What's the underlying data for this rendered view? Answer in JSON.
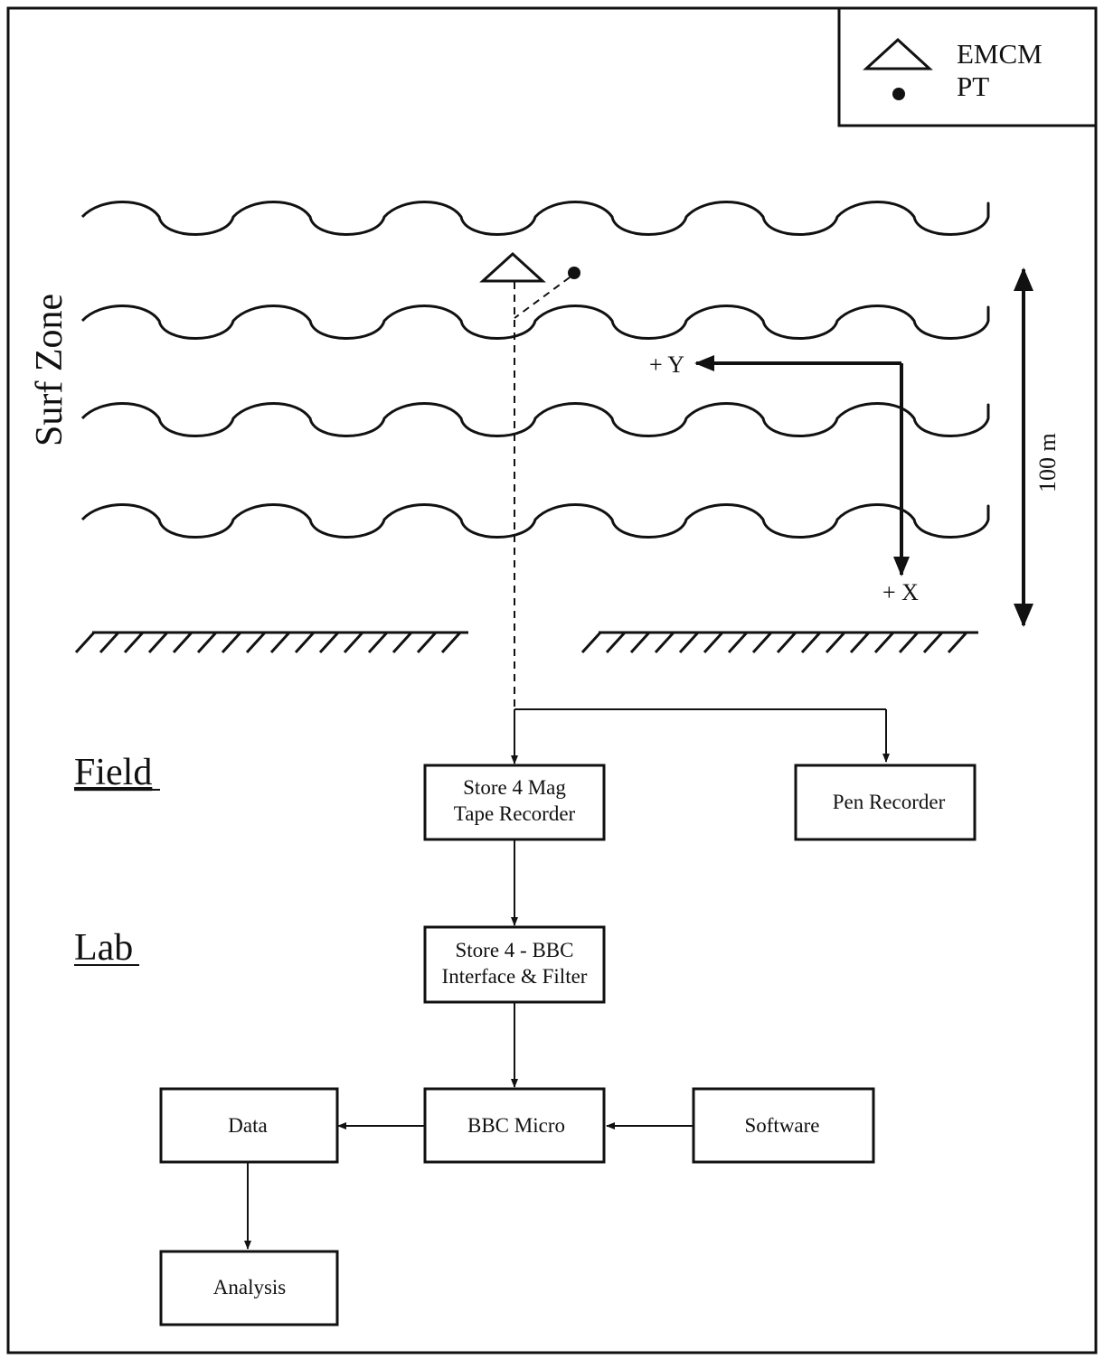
{
  "legend": {
    "items": [
      {
        "symbol": "triangle",
        "label": "EMCM"
      },
      {
        "symbol": "dot",
        "label": "PT"
      }
    ]
  },
  "surf_zone": {
    "label": "Surf Zone",
    "scale_label": "100 m",
    "axis_y_label": "+ Y",
    "axis_x_label": "+ X"
  },
  "sections": {
    "field": "Field",
    "lab": "Lab"
  },
  "boxes": {
    "tape_recorder": [
      "Store 4 Mag",
      "Tape Recorder"
    ],
    "pen_recorder": "Pen Recorder",
    "interface": [
      "Store 4 - BBC",
      "Interface & Filter"
    ],
    "bbc_micro": "BBC Micro",
    "data": "Data",
    "software": "Software",
    "analysis": "Analysis"
  }
}
